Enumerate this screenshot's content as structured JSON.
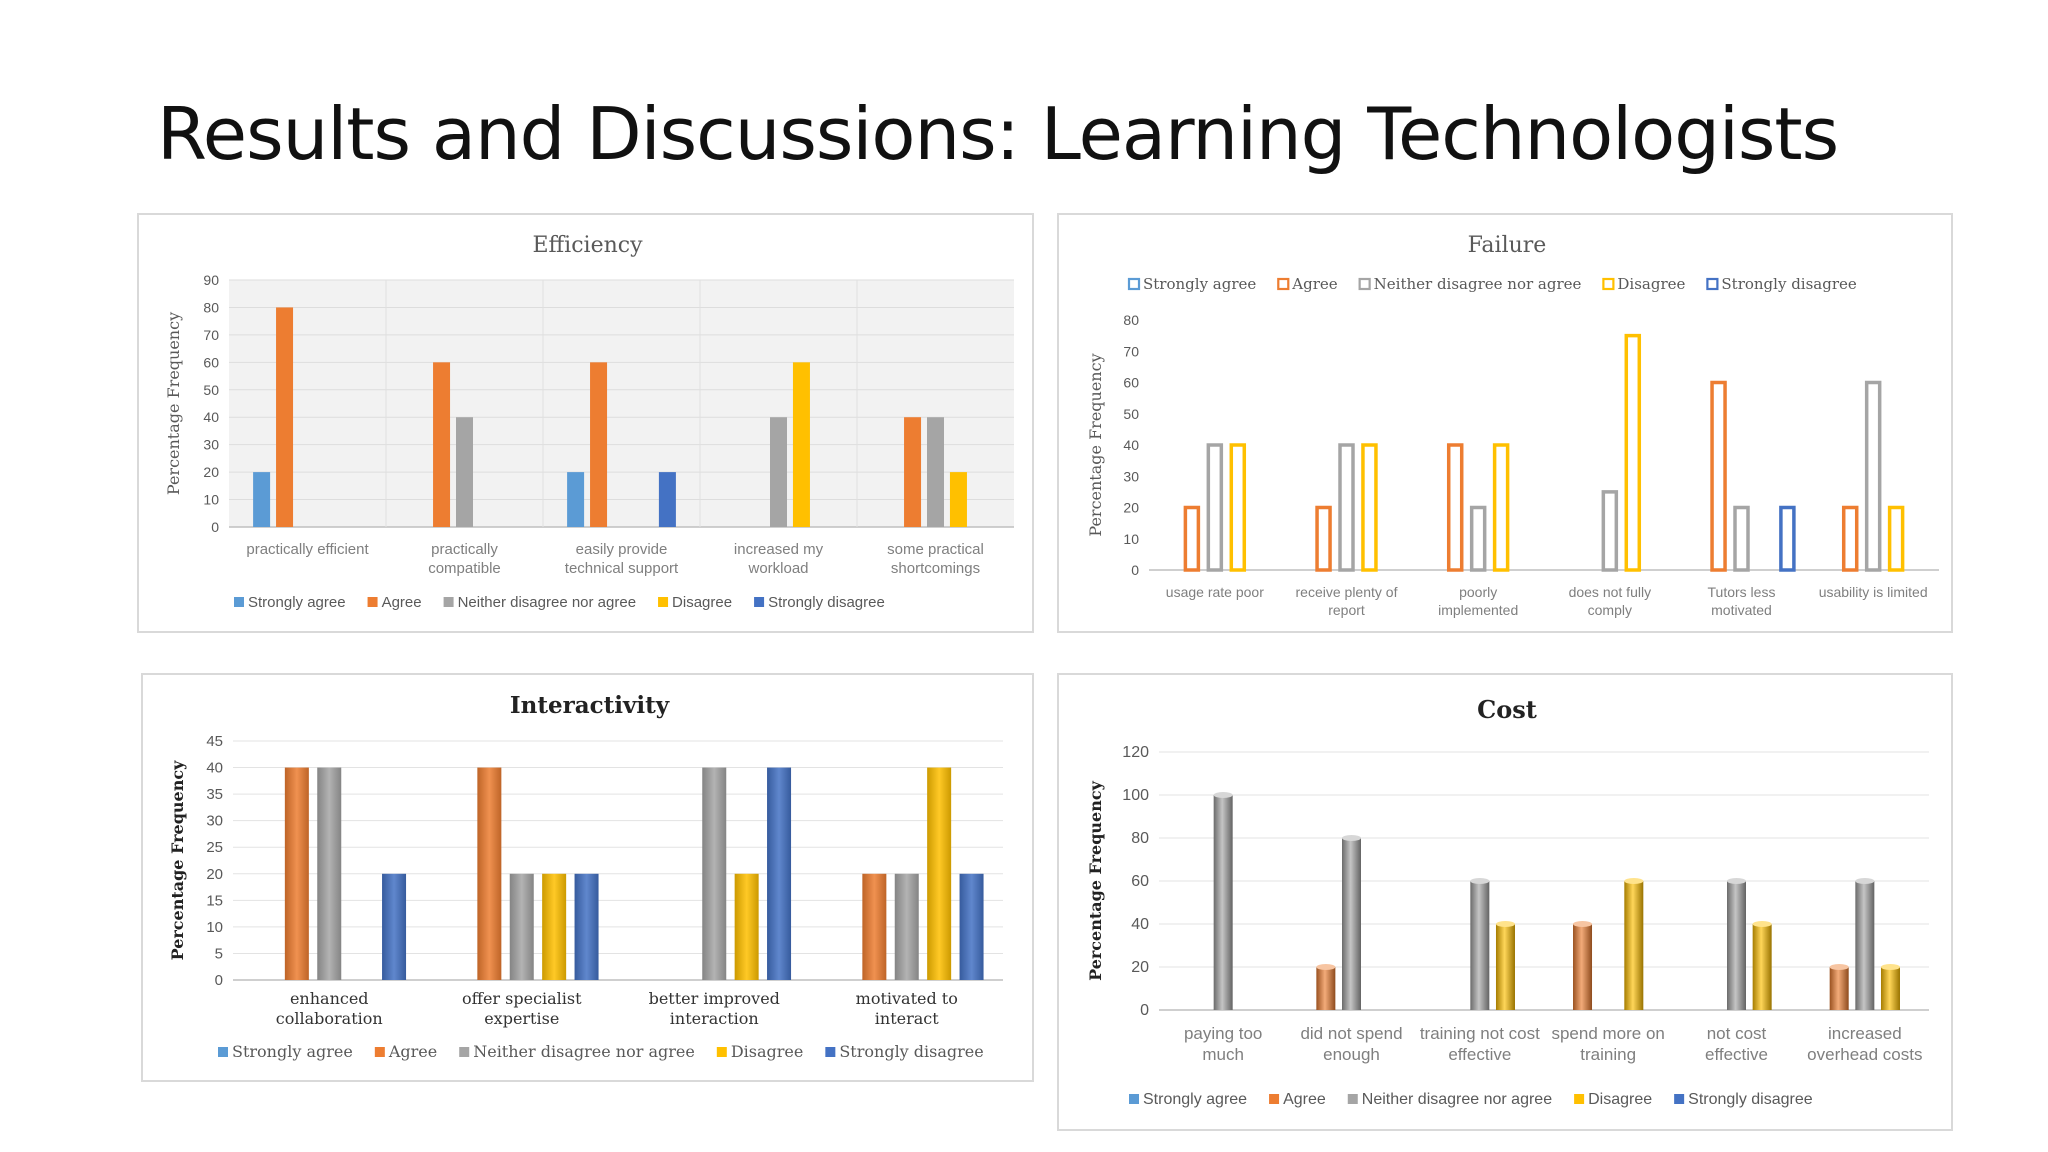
{
  "page": {
    "title": "Results and Discussions: Learning Technologists"
  },
  "legend_labels": [
    "Strongly agree",
    "Agree",
    "Neither disagree nor agree",
    "Disagree",
    "Strongly disagree"
  ],
  "colors": {
    "Strongly agree": "#5b9bd5",
    "Agree": "#ed7d31",
    "Neither disagree nor agree": "#a5a5a5",
    "Disagree": "#ffc000",
    "Strongly disagree": "#4472c4"
  },
  "chart_data": [
    {
      "id": "efficiency",
      "type": "bar",
      "style": "solid",
      "title": "Efficiency",
      "ylabel": "Percentage Frequency",
      "ylim": [
        0,
        90
      ],
      "yticks": [
        0,
        10,
        20,
        30,
        40,
        50,
        60,
        70,
        80,
        90
      ],
      "grid": true,
      "legend_position": "bottom",
      "categories": [
        "practically efficient",
        "practically compatible",
        "easily provide technical support",
        "increased my workload",
        "some practical shortcomings"
      ],
      "category_lines": [
        [
          "practically efficient"
        ],
        [
          "practically",
          "compatible"
        ],
        [
          "easily provide",
          "technical support"
        ],
        [
          "increased my",
          "workload"
        ],
        [
          "some practical",
          "shortcomings"
        ]
      ],
      "series": [
        {
          "name": "Strongly agree",
          "values": [
            20,
            0,
            20,
            0,
            0
          ]
        },
        {
          "name": "Agree",
          "values": [
            80,
            60,
            60,
            0,
            40
          ]
        },
        {
          "name": "Neither disagree nor agree",
          "values": [
            0,
            40,
            0,
            40,
            40
          ]
        },
        {
          "name": "Disagree",
          "values": [
            0,
            0,
            0,
            60,
            20
          ]
        },
        {
          "name": "Strongly disagree",
          "values": [
            0,
            0,
            20,
            0,
            0
          ]
        }
      ]
    },
    {
      "id": "failure",
      "type": "bar",
      "style": "outline",
      "title": "Failure",
      "ylabel": "Percentage Frequency",
      "ylim": [
        0,
        80
      ],
      "yticks": [
        0,
        10,
        20,
        30,
        40,
        50,
        60,
        70,
        80
      ],
      "grid": false,
      "legend_position": "top",
      "categories": [
        "usage rate poor",
        "receive plenty of report",
        "poorly implemented",
        "does not fully comply",
        "Tutors less motivated",
        "usability is limited"
      ],
      "category_lines": [
        [
          "usage rate poor"
        ],
        [
          "receive plenty of",
          "report"
        ],
        [
          "poorly",
          "implemented"
        ],
        [
          "does not fully",
          "comply"
        ],
        [
          "Tutors less",
          "motivated"
        ],
        [
          "usability is limited"
        ]
      ],
      "series": [
        {
          "name": "Strongly agree",
          "values": [
            0,
            0,
            0,
            0,
            0,
            0
          ]
        },
        {
          "name": "Agree",
          "values": [
            20,
            20,
            40,
            0,
            60,
            20
          ]
        },
        {
          "name": "Neither disagree nor agree",
          "values": [
            40,
            40,
            20,
            25,
            20,
            60
          ]
        },
        {
          "name": "Disagree",
          "values": [
            40,
            40,
            40,
            75,
            0,
            20
          ]
        },
        {
          "name": "Strongly disagree",
          "values": [
            0,
            0,
            0,
            0,
            20,
            0
          ]
        }
      ]
    },
    {
      "id": "interactivity",
      "type": "bar",
      "style": "gradient",
      "title": "Interactivity",
      "ylabel": "Percentage Frequency",
      "ylim": [
        0,
        45
      ],
      "yticks": [
        0,
        5,
        10,
        15,
        20,
        25,
        30,
        35,
        40,
        45
      ],
      "grid": true,
      "legend_position": "bottom",
      "categories": [
        "enhanced collaboration",
        "offer specialist expertise",
        "better improved interaction",
        "motivated to interact"
      ],
      "category_lines": [
        [
          "enhanced",
          "collaboration"
        ],
        [
          "offer specialist",
          "expertise"
        ],
        [
          "better improved",
          "interaction"
        ],
        [
          "motivated to",
          "interact"
        ]
      ],
      "series": [
        {
          "name": "Strongly agree",
          "values": [
            0,
            0,
            0,
            0
          ]
        },
        {
          "name": "Agree",
          "values": [
            40,
            40,
            0,
            20
          ]
        },
        {
          "name": "Neither disagree nor agree",
          "values": [
            40,
            20,
            40,
            20
          ]
        },
        {
          "name": "Disagree",
          "values": [
            0,
            20,
            20,
            40
          ]
        },
        {
          "name": "Strongly disagree",
          "values": [
            20,
            20,
            40,
            20
          ]
        }
      ]
    },
    {
      "id": "cost",
      "type": "bar",
      "style": "cylinder",
      "title": "Cost",
      "ylabel": "Percentage Frequency",
      "ylim": [
        0,
        120
      ],
      "yticks": [
        0,
        20,
        40,
        60,
        80,
        100,
        120
      ],
      "grid": true,
      "legend_position": "bottom",
      "categories": [
        "paying too much",
        "did not spend enough",
        "training not cost effective",
        "spend more on training",
        "not cost effective",
        "increased overhead costs"
      ],
      "category_lines": [
        [
          "paying too",
          "much"
        ],
        [
          "did not spend",
          "enough"
        ],
        [
          "training not cost",
          "effective"
        ],
        [
          "spend more on",
          "training"
        ],
        [
          "not cost",
          "effective"
        ],
        [
          "increased",
          "overhead costs"
        ]
      ],
      "series": [
        {
          "name": "Strongly agree",
          "values": [
            0,
            0,
            0,
            0,
            0,
            0
          ]
        },
        {
          "name": "Agree",
          "values": [
            0,
            20,
            0,
            40,
            0,
            20
          ]
        },
        {
          "name": "Neither disagree nor agree",
          "values": [
            100,
            80,
            60,
            0,
            60,
            60
          ]
        },
        {
          "name": "Disagree",
          "values": [
            0,
            0,
            40,
            60,
            40,
            20
          ]
        },
        {
          "name": "Strongly disagree",
          "values": [
            0,
            0,
            0,
            0,
            0,
            0
          ]
        }
      ]
    }
  ]
}
